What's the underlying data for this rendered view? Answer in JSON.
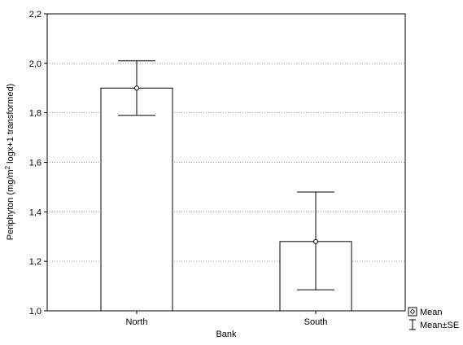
{
  "chart_data": {
    "type": "bar",
    "categories": [
      "North",
      "South"
    ],
    "values": [
      1.9,
      1.28
    ],
    "error_low": [
      1.79,
      1.085
    ],
    "error_high": [
      2.01,
      1.48
    ],
    "xlabel": "Bank",
    "ylabel_parts": {
      "prefix": "Periphyton (mg/m",
      "sup": "2",
      "suffix": " logx+1 transformed)"
    },
    "ylim": [
      1.0,
      2.2
    ],
    "yticks": [
      1.0,
      1.2,
      1.4,
      1.6,
      1.8,
      2.0,
      2.2
    ],
    "ytick_labels": [
      "1,0",
      "1,2",
      "1,4",
      "1,6",
      "1,8",
      "2,0",
      "2,2"
    ],
    "grid": true,
    "legend_placement": "bottom-right",
    "legend": {
      "mean_label": "Mean",
      "error_label": "Mean±SE"
    },
    "colors": {
      "bar_fill": "#ffffff",
      "bar_stroke": "#000000",
      "grid": "#9a9a9a"
    }
  }
}
